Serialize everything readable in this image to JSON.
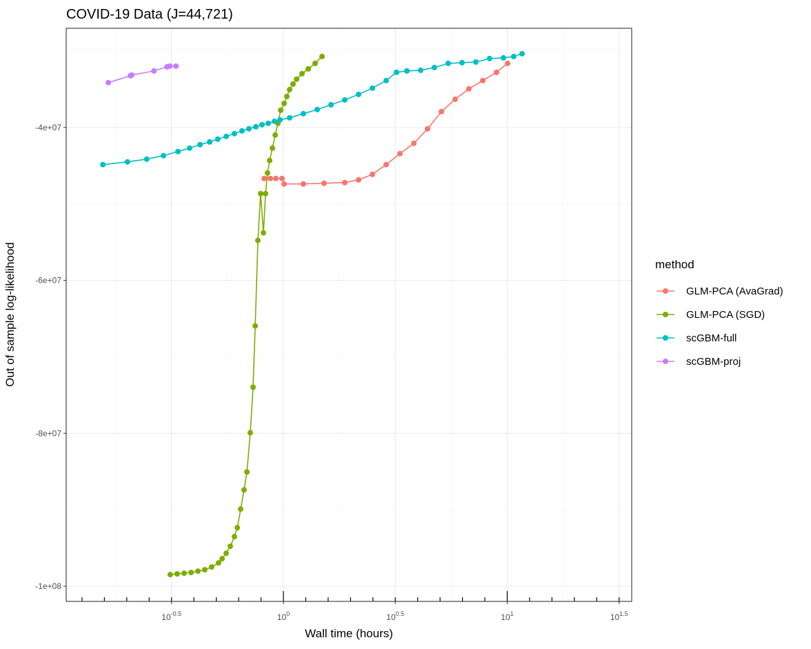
{
  "chart_data": {
    "type": "line",
    "title": "COVID-19 Data (J=44,721)",
    "x_label": "Wall time (hours)",
    "y_label": "Out of sample log-likelihood",
    "log_x": true,
    "grid": true,
    "legend_title": "method",
    "legend_position": "right",
    "xlim": [
      0.107,
      36.0
    ],
    "ylim": [
      -101980000,
      -27030000
    ],
    "xticks": [
      {
        "value": 0.3162,
        "label": "10",
        "exponent": "-0.5"
      },
      {
        "value": 1,
        "label": "10",
        "exponent": "0"
      },
      {
        "value": 3.162,
        "label": "10",
        "exponent": "0.5"
      },
      {
        "value": 10,
        "label": "10",
        "exponent": "1"
      },
      {
        "value": 31.62,
        "label": "10",
        "exponent": "1.5"
      }
    ],
    "yticks": [
      {
        "value": -100000000,
        "label": "-1e+08"
      },
      {
        "value": -80000000,
        "label": "-8e+07"
      },
      {
        "value": -60000000,
        "label": "-6e+07"
      },
      {
        "value": -40000000,
        "label": "-4e+07"
      }
    ],
    "series": [
      {
        "name": "GLM-PCA (AvaGrad)",
        "color": "#F8766D",
        "x": [
          0.82,
          0.874,
          0.925,
          0.986,
          1.007,
          1.228,
          1.519,
          1.88,
          2.167,
          2.498,
          2.878,
          3.318,
          3.829,
          4.407,
          5.079,
          5.85,
          6.744,
          7.776,
          8.954,
          10.04
        ],
        "values": [
          -46670000,
          -46670000,
          -46670000,
          -46670000,
          -47390000,
          -47390000,
          -47300000,
          -47210000,
          -46850000,
          -46130000,
          -44860000,
          -43420000,
          -42070000,
          -40180000,
          -37930000,
          -36310000,
          -34950000,
          -33870000,
          -32790000,
          -31620000
        ]
      },
      {
        "name": "GLM-PCA (SGD)",
        "color": "#7CAE00",
        "x": [
          0.312,
          0.335,
          0.36,
          0.387,
          0.415,
          0.445,
          0.478,
          0.513,
          0.532,
          0.555,
          0.579,
          0.604,
          0.622,
          0.644,
          0.667,
          0.687,
          0.711,
          0.732,
          0.748,
          0.769,
          0.791,
          0.814,
          0.832,
          0.849,
          0.868,
          0.893,
          0.919,
          0.945,
          0.972,
          1.007,
          1.036,
          1.066,
          1.104,
          1.145,
          1.211,
          1.291,
          1.386,
          1.488
        ],
        "values": [
          -98470000,
          -98380000,
          -98290000,
          -98200000,
          -98020000,
          -97840000,
          -97480000,
          -96940000,
          -96400000,
          -95680000,
          -94770000,
          -93510000,
          -92340000,
          -89910000,
          -87390000,
          -85050000,
          -79920000,
          -73970000,
          -65950000,
          -54770000,
          -48650000,
          -53780000,
          -48650000,
          -45950000,
          -44320000,
          -42700000,
          -40990000,
          -39460000,
          -37750000,
          -36850000,
          -35950000,
          -35050000,
          -34320000,
          -33690000,
          -32970000,
          -32340000,
          -31620000,
          -30720000
        ]
      },
      {
        "name": "scGBM-full",
        "color": "#00BFC4",
        "x": [
          0.156,
          0.201,
          0.245,
          0.291,
          0.338,
          0.381,
          0.424,
          0.468,
          0.509,
          0.555,
          0.604,
          0.653,
          0.701,
          0.753,
          0.802,
          0.855,
          0.912,
          0.965,
          1.066,
          1.228,
          1.416,
          1.632,
          1.88,
          2.167,
          2.498,
          2.878,
          3.201,
          3.562,
          4.103,
          4.729,
          5.451,
          6.281,
          7.24,
          8.343,
          9.618,
          10.69,
          11.65
        ],
        "values": [
          -44860000,
          -44500000,
          -44140000,
          -43690000,
          -43150000,
          -42700000,
          -42250000,
          -41890000,
          -41530000,
          -41170000,
          -40810000,
          -40450000,
          -40180000,
          -39910000,
          -39640000,
          -39460000,
          -39190000,
          -39010000,
          -38740000,
          -38200000,
          -37660000,
          -37030000,
          -36400000,
          -35680000,
          -34860000,
          -33870000,
          -32790000,
          -32610000,
          -32520000,
          -32160000,
          -31620000,
          -31530000,
          -31440000,
          -30990000,
          -30900000,
          -30720000,
          -30360000
        ]
      },
      {
        "name": "scGBM-proj",
        "color": "#C77CFF",
        "x": [
          0.165,
          0.207,
          0.21,
          0.264,
          0.302,
          0.311,
          0.331
        ],
        "values": [
          -34140000,
          -33240000,
          -33150000,
          -32610000,
          -32070000,
          -31980000,
          -31980000
        ]
      }
    ]
  }
}
